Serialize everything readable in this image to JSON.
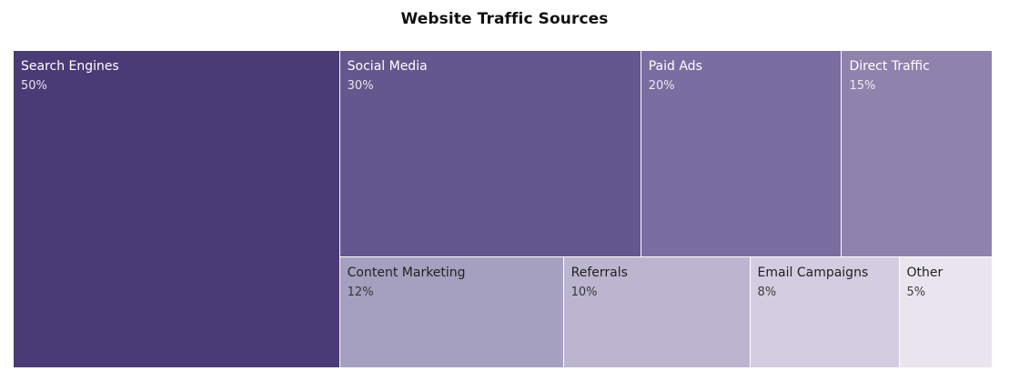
{
  "chart_data": {
    "type": "treemap",
    "title": "Website Traffic Sources",
    "items": [
      {
        "name": "Search Engines",
        "value": 50,
        "value_label": "50%",
        "color": "#4a3b77",
        "text_color": "#ffffff"
      },
      {
        "name": "Social Media",
        "value": 30,
        "value_label": "30%",
        "color": "#63578d",
        "text_color": "#ffffff"
      },
      {
        "name": "Paid Ads",
        "value": 20,
        "value_label": "20%",
        "color": "#7a6da1",
        "text_color": "#ffffff"
      },
      {
        "name": "Direct Traffic",
        "value": 15,
        "value_label": "15%",
        "color": "#8f82ad",
        "text_color": "#ffffff"
      },
      {
        "name": "Content Marketing",
        "value": 12,
        "value_label": "12%",
        "color": "#a59fc0",
        "text_color": "#222222"
      },
      {
        "name": "Referrals",
        "value": 10,
        "value_label": "10%",
        "color": "#bbb5cf",
        "text_color": "#222222"
      },
      {
        "name": "Email Campaigns",
        "value": 8,
        "value_label": "8%",
        "color": "#d2cde0",
        "text_color": "#222222"
      },
      {
        "name": "Other",
        "value": 5,
        "value_label": "5%",
        "color": "#e8e5ee",
        "text_color": "#222222"
      }
    ]
  }
}
